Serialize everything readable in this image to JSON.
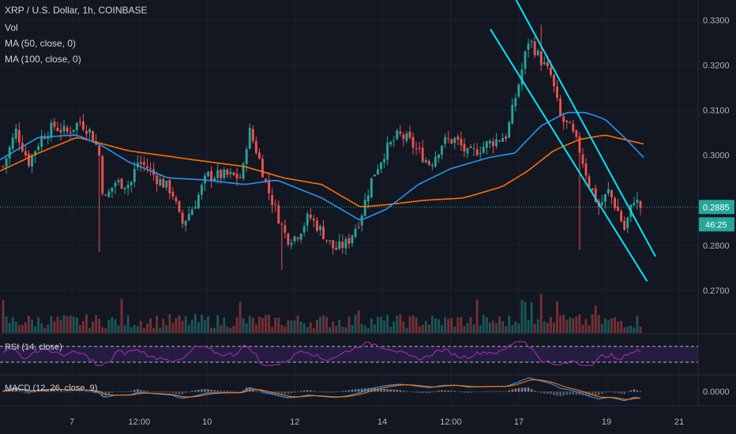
{
  "header": {
    "symbol_line": "XRP / U.S. Dollar, 1h, COINBASE",
    "vol_label": "Vol",
    "ma50_label": "MA (50, close, 0)",
    "ma100_label": "MA (100, close, 0)"
  },
  "rsi_panel": {
    "label": "RSI (14, close)"
  },
  "macd_panel": {
    "label": "MACD (12, 26, close, 9)"
  },
  "price_tag": {
    "value": "0.2885",
    "countdown": "46:25"
  },
  "colors": {
    "background": "#131722",
    "up_candle": "#26a69a",
    "down_candle": "#ef5350",
    "ma50": "#2196f3",
    "ma100": "#ff6d00",
    "trendline": "#00e5ff",
    "rsi_line": "#9c27b0",
    "rsi_band": "#2a1f4a",
    "macd_line": "#2196f3",
    "signal_line": "#ff6d00",
    "price_tag_bg": "#26a69a"
  },
  "chart_data": {
    "type": "candlestick",
    "title": "XRP / U.S. Dollar, 1h, COINBASE",
    "y_axis": {
      "ticks": [
        "0.3300",
        "0.3200",
        "0.3100",
        "0.3000",
        "0.2800",
        "0.2700"
      ],
      "tick_values": [
        0.33,
        0.32,
        0.31,
        0.3,
        0.28,
        0.27
      ],
      "range": [
        0.2605,
        0.3345
      ]
    },
    "x_axis": {
      "ticks": [
        "7",
        "12:00",
        "10",
        "12",
        "14",
        "12:00",
        "17",
        "19",
        "21"
      ],
      "tick_positions_frac": [
        0.106,
        0.205,
        0.305,
        0.434,
        0.563,
        0.664,
        0.764,
        0.893,
        1.0
      ]
    },
    "last_price": 0.2885,
    "price_keypoints": [
      [
        0,
        0.2975
      ],
      [
        0.02,
        0.3055
      ],
      [
        0.04,
        0.2985
      ],
      [
        0.06,
        0.304
      ],
      [
        0.08,
        0.3065
      ],
      [
        0.1,
        0.305
      ],
      [
        0.12,
        0.3075
      ],
      [
        0.135,
        0.3055
      ],
      [
        0.15,
        0.301
      ],
      [
        0.158,
        0.2895
      ],
      [
        0.175,
        0.294
      ],
      [
        0.2,
        0.2935
      ],
      [
        0.21,
        0.2985
      ],
      [
        0.225,
        0.2975
      ],
      [
        0.24,
        0.295
      ],
      [
        0.265,
        0.292
      ],
      [
        0.28,
        0.2845
      ],
      [
        0.3,
        0.289
      ],
      [
        0.32,
        0.2955
      ],
      [
        0.35,
        0.2955
      ],
      [
        0.375,
        0.295
      ],
      [
        0.385,
        0.306
      ],
      [
        0.4,
        0.3
      ],
      [
        0.415,
        0.2925
      ],
      [
        0.43,
        0.287
      ],
      [
        0.445,
        0.2815
      ],
      [
        0.46,
        0.282
      ],
      [
        0.48,
        0.2865
      ],
      [
        0.5,
        0.283
      ],
      [
        0.52,
        0.279
      ],
      [
        0.54,
        0.2805
      ],
      [
        0.56,
        0.286
      ],
      [
        0.58,
        0.2955
      ],
      [
        0.6,
        0.301
      ],
      [
        0.62,
        0.3045
      ],
      [
        0.635,
        0.3035
      ],
      [
        0.65,
        0.301
      ],
      [
        0.67,
        0.298
      ],
      [
        0.69,
        0.303
      ],
      [
        0.71,
        0.3035
      ],
      [
        0.73,
        0.3
      ],
      [
        0.76,
        0.3025
      ],
      [
        0.79,
        0.3045
      ],
      [
        0.81,
        0.3165
      ],
      [
        0.825,
        0.326
      ],
      [
        0.84,
        0.322
      ],
      [
        0.86,
        0.3175
      ],
      [
        0.875,
        0.308
      ],
      [
        0.89,
        0.306
      ],
      [
        0.905,
        0.301
      ],
      [
        0.92,
        0.2935
      ],
      [
        0.935,
        0.2885
      ],
      [
        0.95,
        0.292
      ],
      [
        0.965,
        0.2875
      ],
      [
        0.975,
        0.2835
      ],
      [
        0.99,
        0.2905
      ],
      [
        1.0,
        0.2885
      ]
    ],
    "ma50_keypoints": [
      [
        0,
        0.299
      ],
      [
        0.06,
        0.304
      ],
      [
        0.12,
        0.3045
      ],
      [
        0.16,
        0.302
      ],
      [
        0.2,
        0.2985
      ],
      [
        0.26,
        0.295
      ],
      [
        0.32,
        0.2945
      ],
      [
        0.38,
        0.2935
      ],
      [
        0.43,
        0.2945
      ],
      [
        0.5,
        0.2905
      ],
      [
        0.56,
        0.2855
      ],
      [
        0.6,
        0.288
      ],
      [
        0.65,
        0.2935
      ],
      [
        0.7,
        0.297
      ],
      [
        0.76,
        0.2995
      ],
      [
        0.8,
        0.3005
      ],
      [
        0.84,
        0.3065
      ],
      [
        0.88,
        0.3095
      ],
      [
        0.91,
        0.3095
      ],
      [
        0.94,
        0.308
      ],
      [
        0.97,
        0.304
      ],
      [
        1.0,
        0.2995
      ]
    ],
    "ma100_keypoints": [
      [
        0,
        0.2965
      ],
      [
        0.06,
        0.3005
      ],
      [
        0.12,
        0.304
      ],
      [
        0.2,
        0.301
      ],
      [
        0.3,
        0.299
      ],
      [
        0.38,
        0.2975
      ],
      [
        0.44,
        0.295
      ],
      [
        0.5,
        0.2935
      ],
      [
        0.56,
        0.2885
      ],
      [
        0.6,
        0.289
      ],
      [
        0.66,
        0.29
      ],
      [
        0.72,
        0.2905
      ],
      [
        0.78,
        0.293
      ],
      [
        0.82,
        0.2965
      ],
      [
        0.86,
        0.301
      ],
      [
        0.9,
        0.3035
      ],
      [
        0.94,
        0.3045
      ],
      [
        1.0,
        0.3025
      ]
    ],
    "trendlines": [
      {
        "from": [
          0.762,
          0.328
        ],
        "to": [
          0.987,
          0.272
        ]
      },
      {
        "from": [
          0.802,
          0.3345
        ],
        "to": [
          1.0,
          0.2775
        ]
      }
    ],
    "rsi_band": [
      30,
      70
    ],
    "macd_zero_label": "0.0000"
  }
}
